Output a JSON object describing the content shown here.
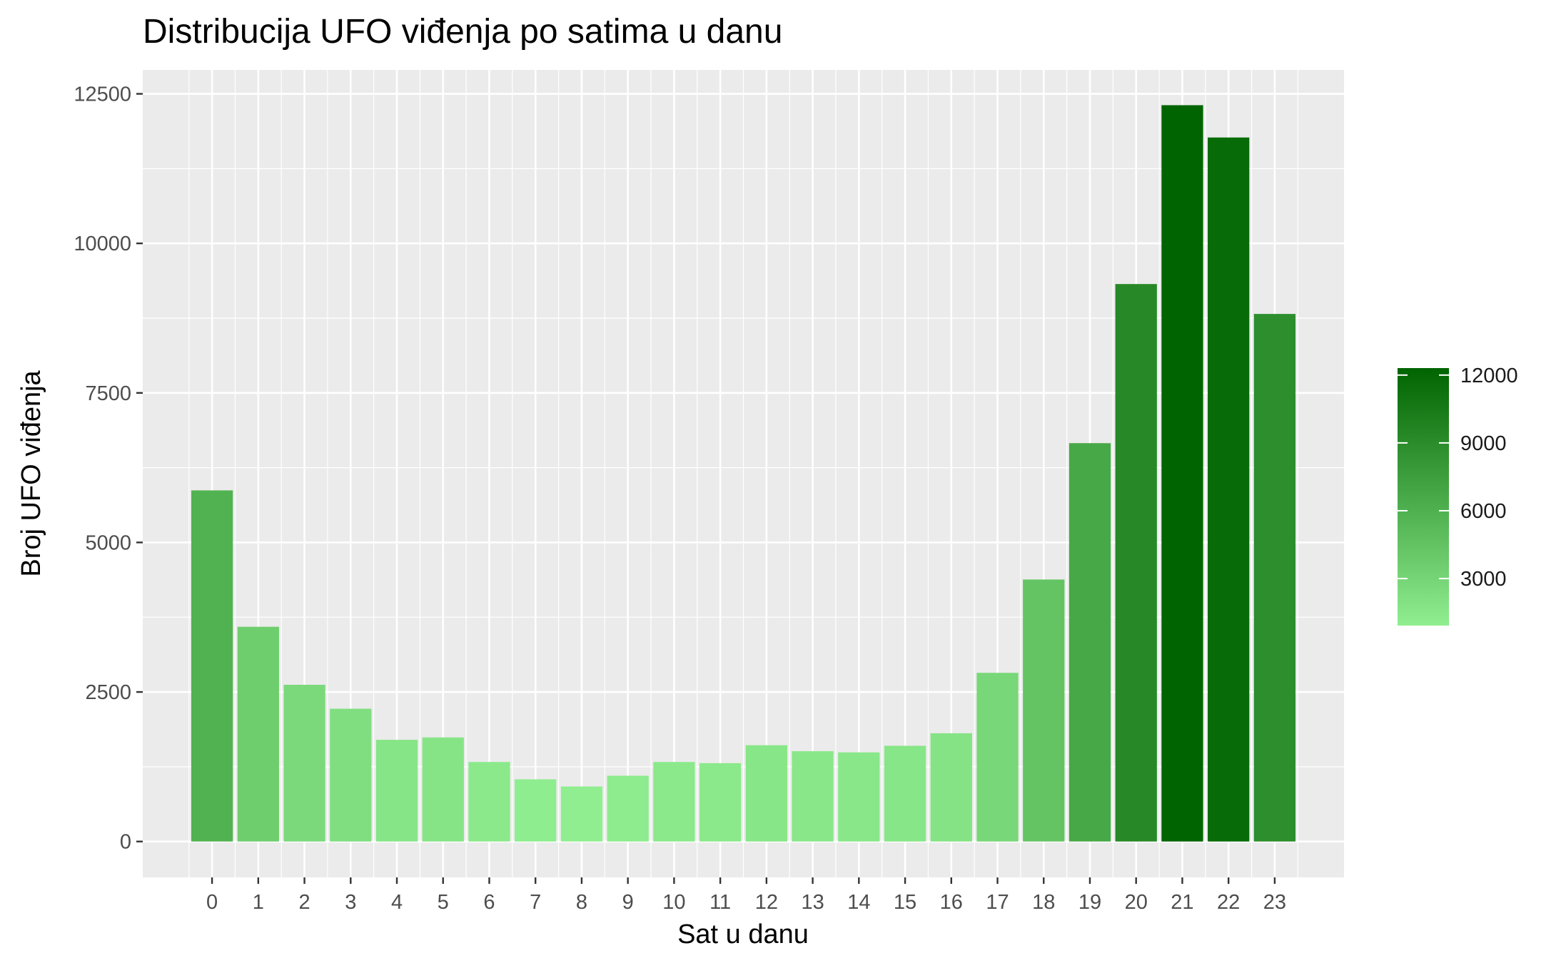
{
  "chart_data": {
    "type": "bar",
    "title": "Distribucija UFO viđenja po satima u danu",
    "xlabel": "Sat u danu",
    "ylabel": "Broj UFO viđenja",
    "categories": [
      "0",
      "1",
      "2",
      "3",
      "4",
      "5",
      "6",
      "7",
      "8",
      "9",
      "10",
      "11",
      "12",
      "13",
      "14",
      "15",
      "16",
      "17",
      "18",
      "19",
      "20",
      "21",
      "22",
      "23"
    ],
    "values": [
      5870,
      3590,
      2620,
      2220,
      1700,
      1740,
      1330,
      1040,
      920,
      1100,
      1330,
      1310,
      1610,
      1510,
      1490,
      1600,
      1810,
      2820,
      4380,
      6660,
      9320,
      12310,
      11770,
      8820
    ],
    "ylim": [
      -600,
      12900
    ],
    "y_ticks": [
      0,
      2500,
      5000,
      7500,
      10000,
      12500
    ],
    "y_tick_labels": [
      "0",
      "2500",
      "5000",
      "7500",
      "10000",
      "12500"
    ],
    "grid": true,
    "colors": {
      "panel_background": "#ebebeb",
      "grid": "#ffffff",
      "low": "#90ee90",
      "high": "#006400"
    },
    "legend": {
      "placement": "right",
      "fill_range": [
        920,
        12310
      ],
      "ticks": [
        3000,
        6000,
        9000,
        12000
      ],
      "tick_labels": [
        "3000",
        "6000",
        "9000",
        "12000"
      ]
    }
  }
}
